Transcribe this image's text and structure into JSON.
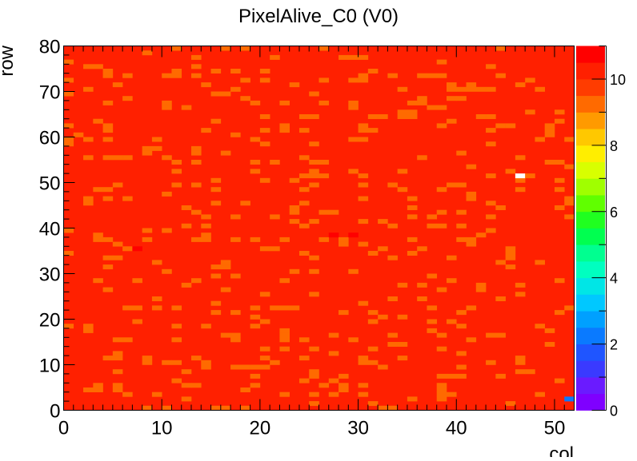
{
  "chart_data": {
    "type": "heatmap",
    "title": "PixelAlive_C0 (V0)",
    "xlabel": "col",
    "ylabel": "row",
    "xlim": [
      0,
      52
    ],
    "ylim": [
      0,
      80
    ],
    "x_ticks": [
      "0",
      "10",
      "20",
      "30",
      "40",
      "50"
    ],
    "y_ticks": [
      "0",
      "10",
      "20",
      "30",
      "40",
      "50",
      "60",
      "70",
      "80"
    ],
    "z_range": [
      0,
      11
    ],
    "z_ticks": [
      "0",
      "2",
      "4",
      "6",
      "8",
      "10"
    ],
    "colormap": "rainbow (purple-blue-cyan-green-yellow-orange-red)",
    "background_value": 10,
    "mask_description": "most pixels 10, scattered pixels 9",
    "special_pixels": [
      {
        "col": 46,
        "row": 51,
        "value": 0,
        "note": "dead (white)"
      },
      {
        "col": 51,
        "row": 2,
        "value": 2
      },
      {
        "col": 7,
        "row": 35,
        "value": 11
      },
      {
        "col": 27,
        "row": 38,
        "value": 11
      },
      {
        "col": 29,
        "row": 38,
        "value": 11
      }
    ]
  }
}
